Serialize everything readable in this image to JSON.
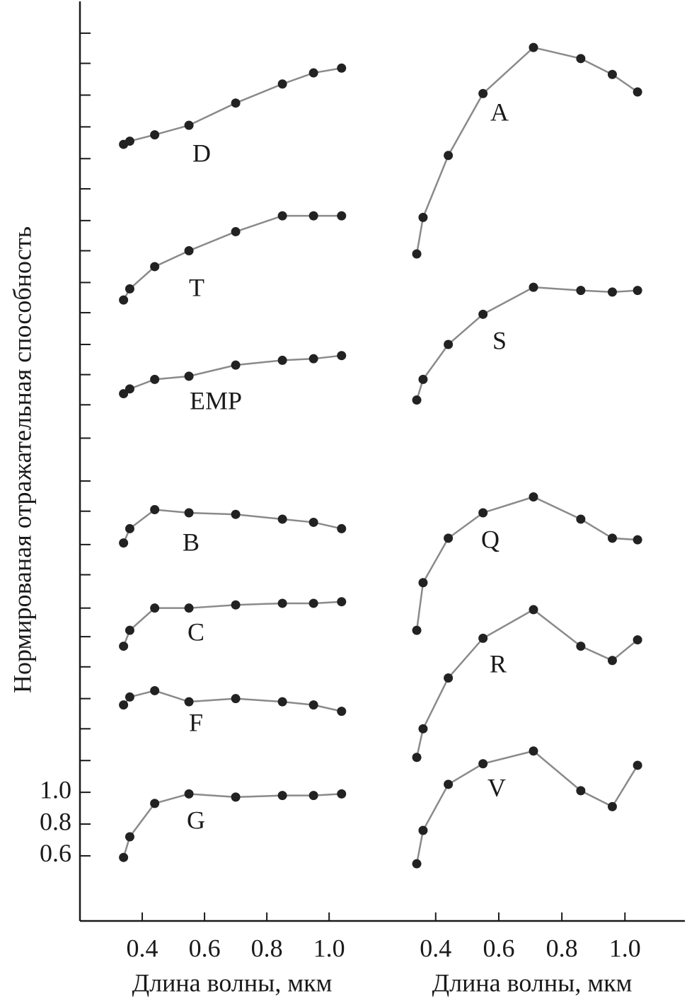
{
  "chart_data": [
    {
      "type": "line",
      "ylabel": "Нормированая отражательная способность",
      "xlabel": "Длина волны, мкм",
      "xlim": [
        0.2,
        1.17
      ],
      "xticks": [
        0.4,
        0.6,
        0.8,
        {
          "value": 1.0,
          "label": "1.0"
        }
      ],
      "ylim": [
        0.19,
        5.98
      ],
      "yticks": [
        0.6,
        0.8,
        {
          "value": 1.0,
          "label": "1.0"
        }
      ],
      "yminorticks": [
        1.2,
        1.4,
        1.59,
        1.79,
        1.98,
        2.16,
        2.37,
        2.56,
        2.77,
        2.96,
        3.23,
        3.44,
        3.63,
        3.82,
        4.02,
        4.21,
        4.41,
        4.6,
        4.8,
        4.99,
        5.19,
        5.39,
        5.59,
        5.78
      ],
      "line_color": "#8a8a8a",
      "marker_color": "#222222",
      "x": [
        0.34,
        0.36,
        0.44,
        0.55,
        0.7,
        0.85,
        0.95,
        1.04
      ],
      "series": [
        {
          "name": "D",
          "values": [
            5.08,
            5.1,
            5.14,
            5.2,
            5.34,
            5.46,
            5.53,
            5.56
          ]
        },
        {
          "name": "T",
          "values": [
            4.1,
            4.17,
            4.31,
            4.41,
            4.53,
            4.63,
            4.63,
            4.63
          ]
        },
        {
          "name": "EMP",
          "values": [
            3.51,
            3.54,
            3.6,
            3.62,
            3.69,
            3.72,
            3.73,
            3.75
          ]
        },
        {
          "name": "B",
          "values": [
            2.57,
            2.66,
            2.78,
            2.76,
            2.75,
            2.72,
            2.7,
            2.66
          ]
        },
        {
          "name": "C",
          "values": [
            1.92,
            2.02,
            2.16,
            2.16,
            2.18,
            2.19,
            2.19,
            2.2
          ]
        },
        {
          "name": "F",
          "values": [
            1.55,
            1.6,
            1.64,
            1.57,
            1.59,
            1.57,
            1.55,
            1.51
          ]
        },
        {
          "name": "G",
          "values": [
            0.59,
            0.72,
            0.93,
            0.99,
            0.97,
            0.98,
            0.98,
            0.99
          ]
        }
      ]
    },
    {
      "type": "line",
      "xlabel": "Длина волны, мкм",
      "xlim": [
        0.23,
        1.19
      ],
      "xticks": [
        0.4,
        0.6,
        0.8,
        {
          "value": 1.0,
          "label": "1.0"
        }
      ],
      "ylim": [
        0.19,
        5.98
      ],
      "line_color": "#8a8a8a",
      "marker_color": "#222222",
      "x": [
        0.34,
        0.36,
        0.44,
        0.55,
        0.71,
        0.86,
        0.96,
        1.04
      ],
      "series": [
        {
          "name": "A",
          "values": [
            4.39,
            4.62,
            5.01,
            5.4,
            5.69,
            5.62,
            5.52,
            5.41
          ]
        },
        {
          "name": "S",
          "values": [
            3.47,
            3.6,
            3.82,
            4.01,
            4.18,
            4.16,
            4.15,
            4.16
          ]
        },
        {
          "name": "Q",
          "values": [
            2.02,
            2.32,
            2.6,
            2.76,
            2.86,
            2.72,
            2.6,
            2.59
          ]
        },
        {
          "name": "R",
          "values": [
            1.22,
            1.4,
            1.72,
            1.97,
            2.15,
            1.92,
            1.83,
            1.96
          ]
        },
        {
          "name": "V",
          "values": [
            0.55,
            0.76,
            1.05,
            1.18,
            1.26,
            1.01,
            0.91,
            1.17
          ]
        }
      ]
    }
  ]
}
